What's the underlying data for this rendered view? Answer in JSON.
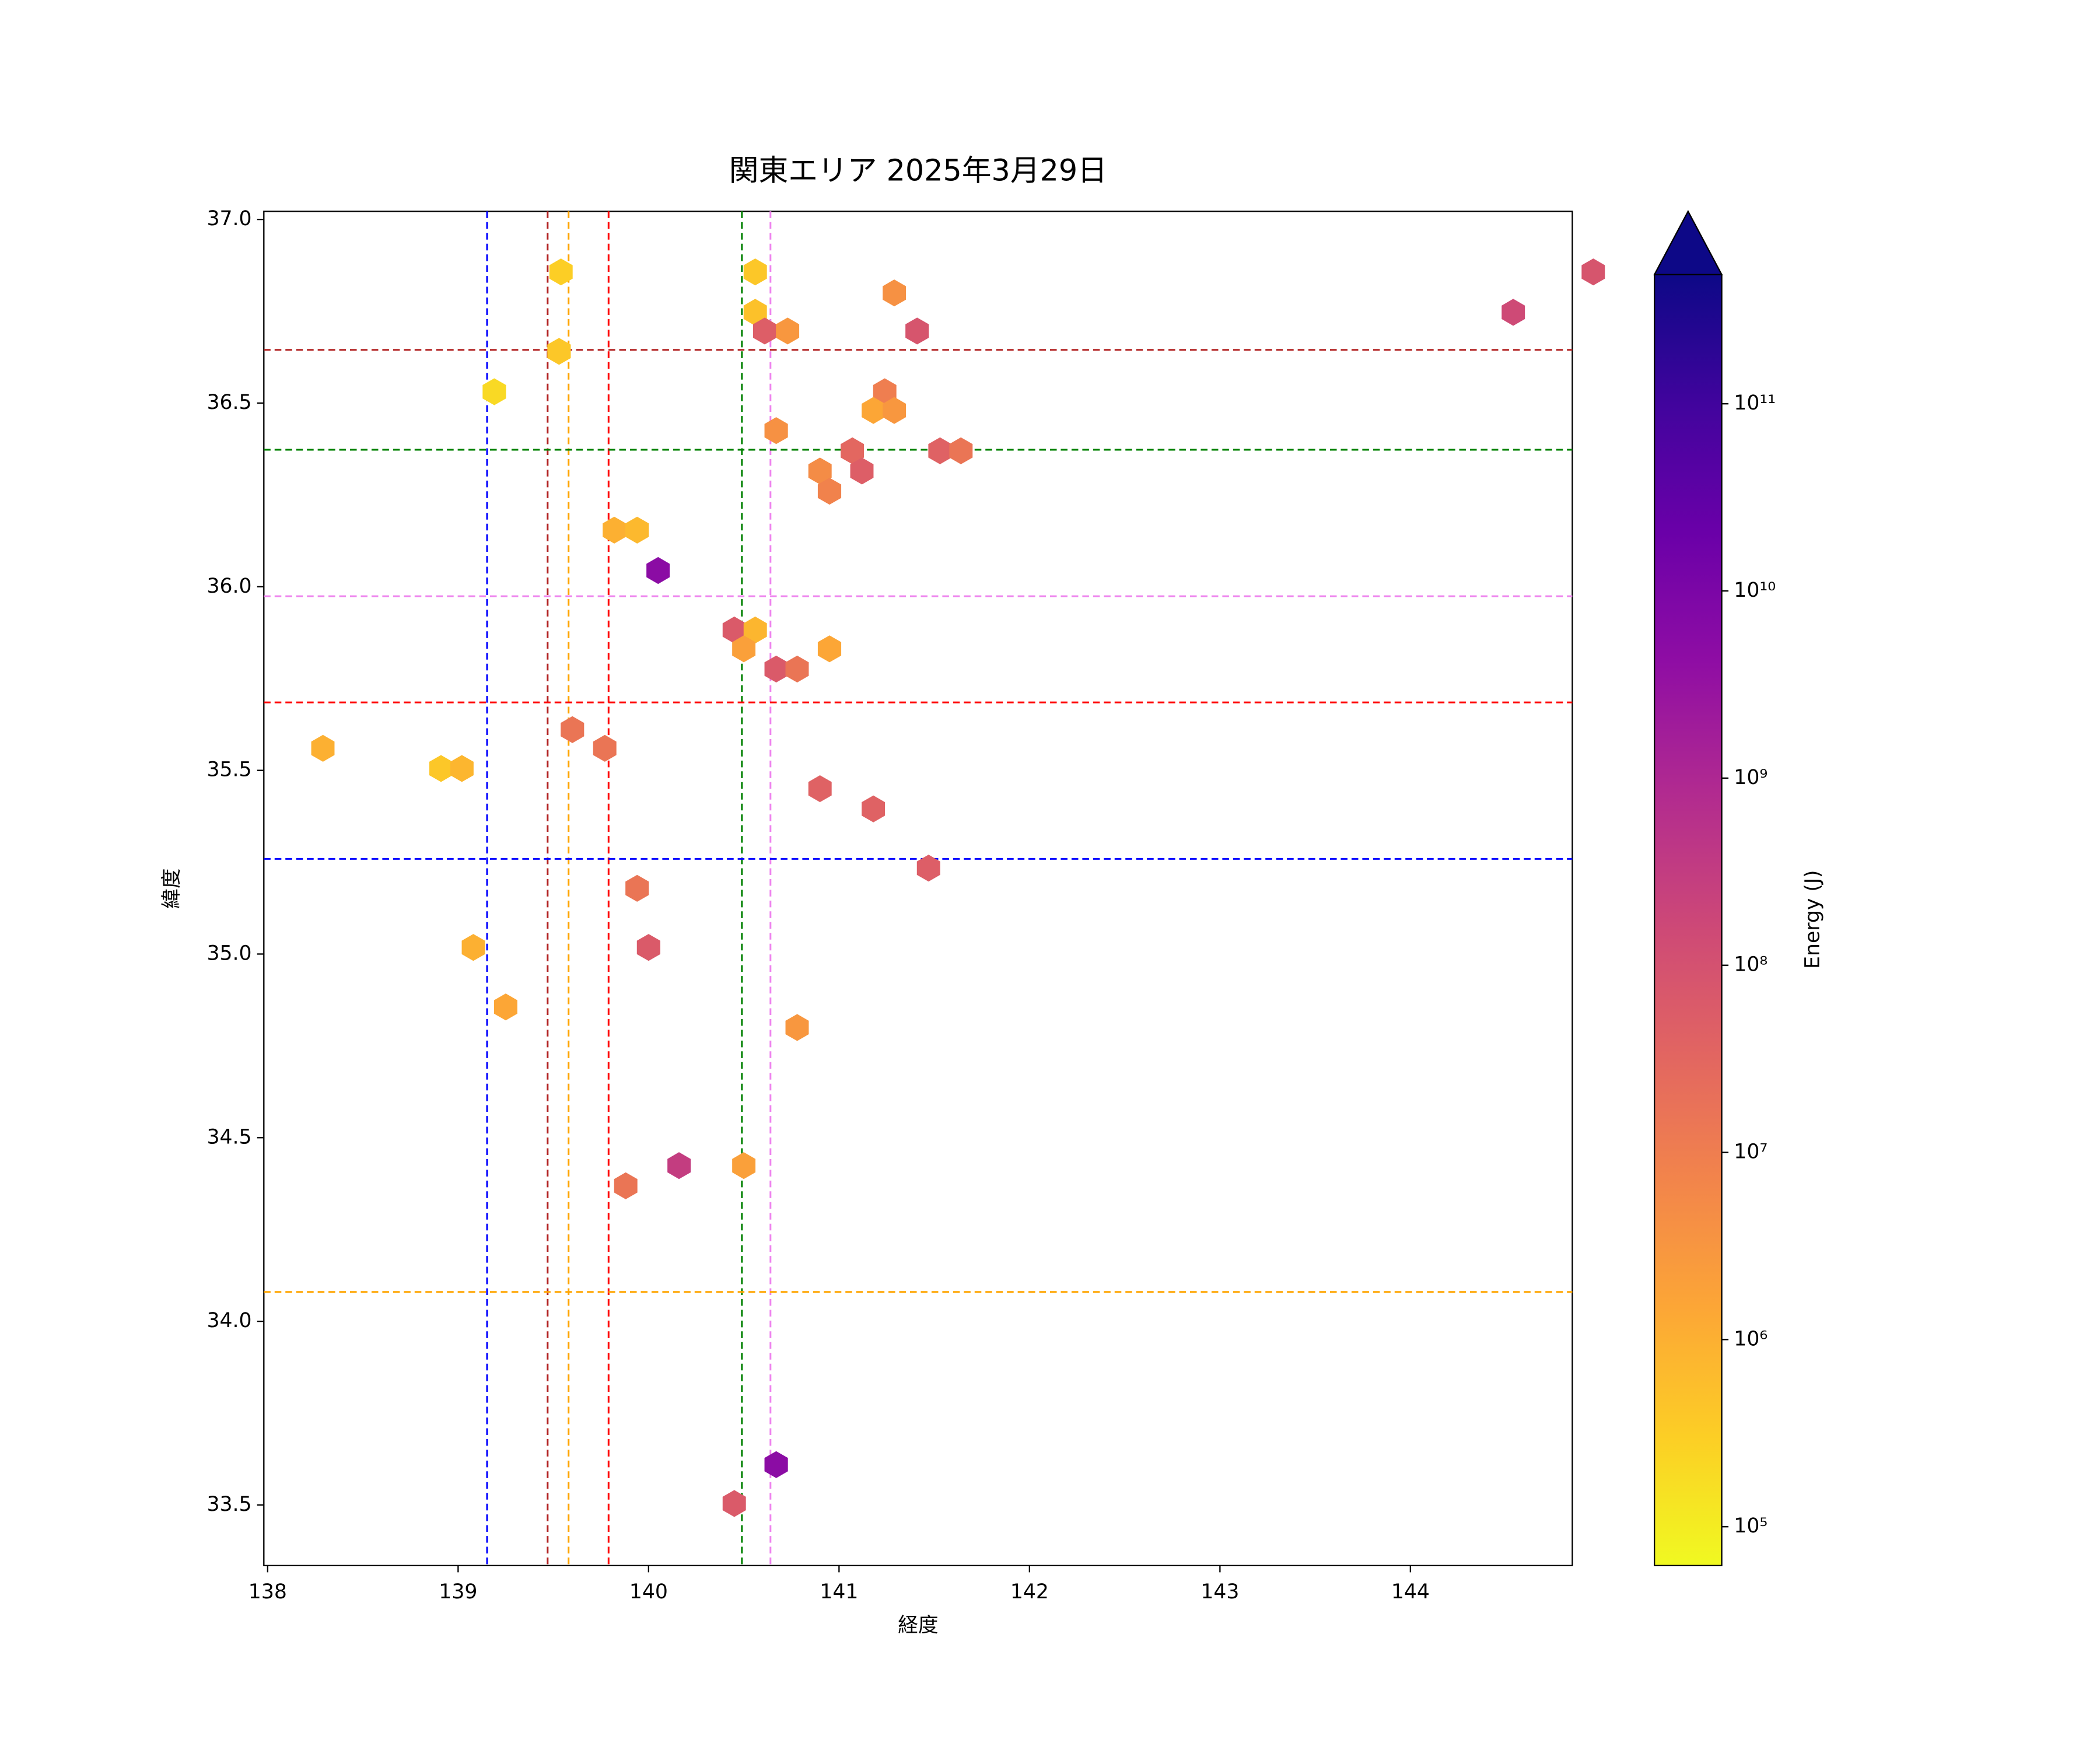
{
  "chart_data": {
    "type": "hexbin",
    "title": "関東エリア 2025年3月29日",
    "xlabel": "経度",
    "ylabel": "緯度",
    "x": [
      144.96,
      144.54,
      139.54,
      140.56,
      141.29,
      140.56,
      140.61,
      140.73,
      141.41,
      139.53,
      139.19,
      141.24,
      141.18,
      141.29,
      140.67,
      141.07,
      141.53,
      141.64,
      140.9,
      141.12,
      140.95,
      139.82,
      139.94,
      140.05,
      140.45,
      140.56,
      140.5,
      140.95,
      140.67,
      140.78,
      138.29,
      139.6,
      139.77,
      138.91,
      139.02,
      140.9,
      141.18,
      141.47,
      139.94,
      140.0,
      139.08,
      139.25,
      140.78,
      140.16,
      140.5,
      139.88,
      140.67,
      140.45
    ],
    "y": [
      36.857,
      36.747,
      36.857,
      36.857,
      36.8,
      36.747,
      36.696,
      36.696,
      36.696,
      36.641,
      36.531,
      36.531,
      36.48,
      36.48,
      36.425,
      36.37,
      36.37,
      36.37,
      36.315,
      36.315,
      36.26,
      36.154,
      36.154,
      36.044,
      35.882,
      35.882,
      35.831,
      35.831,
      35.776,
      35.776,
      35.56,
      35.611,
      35.56,
      35.505,
      35.505,
      35.45,
      35.395,
      35.234,
      35.179,
      35.018,
      35.018,
      34.856,
      34.8,
      34.424,
      34.424,
      34.369,
      33.61,
      33.504
    ],
    "values": [
      80000000,
      150000000,
      300000,
      400000,
      4000000,
      500000,
      50000000,
      3000000,
      80000000,
      400000,
      200000,
      10000000,
      1500000,
      3000000,
      4000000,
      30000000,
      40000000,
      15000000,
      5000000,
      50000000,
      8000000,
      1000000,
      700000,
      5000000000,
      60000000,
      800000,
      2000000,
      1500000,
      60000000,
      15000000,
      1000000,
      15000000,
      15000000,
      400000,
      800000,
      40000000,
      40000000,
      50000000,
      15000000,
      60000000,
      1000000,
      1500000,
      3000000,
      300000000,
      2000000,
      15000000,
      5000000000,
      60000000
    ],
    "colormap": "plasma_r",
    "clim": [
      62000,
      490000000000
    ],
    "log_color": true,
    "colorbar_label": "Energy (J)",
    "colorbar_ticks": [
      {
        "value": 100000,
        "label": "10⁵"
      },
      {
        "value": 1000000,
        "label": "10⁶"
      },
      {
        "value": 10000000,
        "label": "10⁷"
      },
      {
        "value": 100000000,
        "label": "10⁸"
      },
      {
        "value": 1000000000,
        "label": "10⁹"
      },
      {
        "value": 10000000000,
        "label": "10¹⁰"
      },
      {
        "value": 100000000000,
        "label": "10¹¹"
      }
    ],
    "xlim": [
      137.98,
      144.85
    ],
    "ylim": [
      33.335,
      37.022
    ],
    "xticks": [
      138,
      139,
      140,
      141,
      142,
      143,
      144
    ],
    "yticks": [
      33.5,
      {
        "value": 34,
        "label": "34.0"
      },
      34.5,
      {
        "value": 35,
        "label": "35.0"
      },
      35.5,
      {
        "value": 36,
        "label": "36.0"
      },
      36.5,
      {
        "value": 37,
        "label": "37.0"
      }
    ],
    "vlines": [
      {
        "value": 139.152,
        "color": "#0000ff"
      },
      {
        "value": 139.47,
        "color": "#b22222"
      },
      {
        "value": 139.58,
        "color": "#ffa500"
      },
      {
        "value": 139.79,
        "color": "#ff0000"
      },
      {
        "value": 140.49,
        "color": "#008000"
      },
      {
        "value": 140.64,
        "color": "#ee82ee"
      }
    ],
    "hlines": [
      {
        "value": 36.645,
        "color": "#b22222"
      },
      {
        "value": 36.373,
        "color": "#008000"
      },
      {
        "value": 35.974,
        "color": "#ee82ee"
      },
      {
        "value": 35.685,
        "color": "#ff0000"
      },
      {
        "value": 35.259,
        "color": "#0000ff"
      },
      {
        "value": 34.08,
        "color": "#ffa500"
      }
    ]
  }
}
